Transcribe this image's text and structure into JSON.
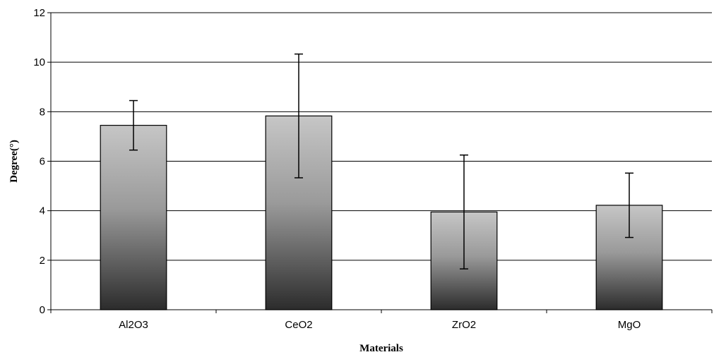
{
  "chart_data": {
    "type": "bar",
    "title": "",
    "xlabel": "Materials",
    "ylabel": "Degree(°)",
    "categories": [
      "Al2O3",
      "CeO2",
      "ZrO2",
      "MgO"
    ],
    "series": [
      {
        "values": [
          7.45,
          7.83,
          3.95,
          4.22
        ],
        "error": [
          1.0,
          2.5,
          2.3,
          1.3
        ]
      }
    ],
    "ylim": [
      0,
      12
    ],
    "yticks": [
      0,
      2,
      4,
      6,
      8,
      10,
      12
    ],
    "grid": true,
    "legend": "none",
    "colors": {
      "bar_top": "#c6c6c6",
      "bar_bottom": "#2c2c2c",
      "bar_outline": "#000000",
      "grid": "#000000",
      "error_bar": "#000000"
    }
  }
}
